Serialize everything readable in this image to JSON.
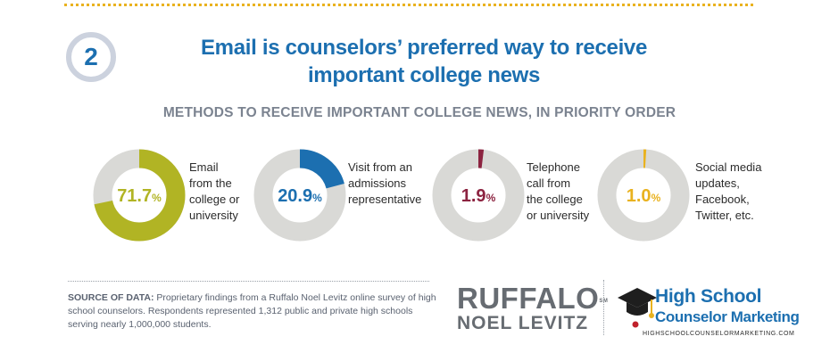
{
  "step_number": "2",
  "headline": {
    "line1": "Email is counselors’ preferred way to receive",
    "line2": "important college news"
  },
  "chart_data": {
    "type": "pie",
    "title": "METHODS TO RECEIVE IMPORTANT COLLEGE NEWS, IN PRIORITY ORDER",
    "slices": [
      {
        "value": 71.7,
        "value_label": "71.7",
        "label_lines": [
          "Email",
          "from the",
          "college or",
          "university"
        ],
        "color": "#b1b424"
      },
      {
        "value": 20.9,
        "value_label": "20.9",
        "label_lines": [
          "Visit from an",
          "admissions",
          "representative"
        ],
        "color": "#1c6fb0"
      },
      {
        "value": 1.9,
        "value_label": "1.9",
        "label_lines": [
          "Telephone",
          "call from",
          "the college",
          "or university"
        ],
        "color": "#8c2340"
      },
      {
        "value": 1.0,
        "value_label": "1.0",
        "label_lines": [
          "Social media",
          "updates,",
          "Facebook,",
          "Twitter, etc."
        ],
        "color": "#e9b21f"
      }
    ],
    "percent_symbol": "%",
    "track_color": "#d9d9d6"
  },
  "source": {
    "label": "SOURCE OF DATA:",
    "text": " Proprietary findings from a Ruffalo Noel Levitz online survey of high school counselors. Respondents represented 1,312 public and private high schools serving nearly 1,000,000 students."
  },
  "logos": {
    "ruffalo_top": "RUFFALO",
    "ruffalo_sm": "SM",
    "ruffalo_bottom": "NOEL LEVITZ",
    "hscm_line1": "High School",
    "hscm_line2": "Counselor Marketing",
    "hscm_url": "HIGHSCHOOLCOUNSELORMARKETING.COM"
  },
  "colors": {
    "brand_blue": "#1c6fb0",
    "subtitle_gray": "#7b8390",
    "accent_gold": "#e9b21f"
  }
}
